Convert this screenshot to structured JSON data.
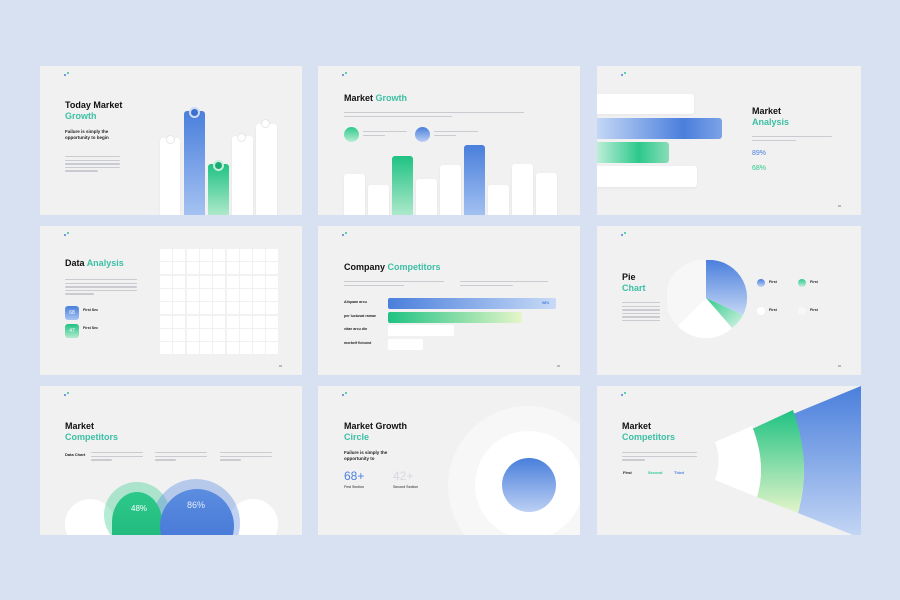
{
  "colors": {
    "background": "#d7e1f1",
    "slide": "#f1f1f2",
    "blue": "#4a7fdc",
    "green": "#2cc98a",
    "teal_text": "#3cbfa4"
  },
  "slides": [
    {
      "title": "Today Market",
      "title_accent": "Growth",
      "subtitle": "Failure is simply the opportunity to begin"
    },
    {
      "title": "Market",
      "title_accent": "Growth"
    },
    {
      "title": "Market",
      "title_accent": "Analysis",
      "stats": [
        {
          "value": "89%",
          "color": "#4a7fdc"
        },
        {
          "value": "68%",
          "color": "#2cc98a"
        }
      ]
    },
    {
      "title": "Data",
      "title_accent": "Analysis",
      "legend": [
        {
          "value": "68",
          "label": "First Sec"
        },
        {
          "value": "47",
          "label": "First Sec"
        }
      ],
      "grid": {
        "cols": 9,
        "rows": 8,
        "blue_cells": [
          [
            7,
            0
          ],
          [
            1,
            1
          ],
          [
            7,
            2
          ],
          [
            0,
            4
          ],
          [
            5,
            4
          ],
          [
            8,
            4
          ],
          [
            6,
            5
          ]
        ],
        "green_cells": [
          [
            2,
            1
          ],
          [
            4,
            3
          ],
          [
            3,
            4
          ],
          [
            0,
            5
          ],
          [
            5,
            7
          ]
        ]
      }
    },
    {
      "title": "Company",
      "title_accent": "Competitors",
      "rows": [
        {
          "label": "Aliquam arcu",
          "level": 1.0,
          "style": "blue",
          "value": "98%"
        },
        {
          "label": "per luctusat ramae",
          "level": 0.8,
          "style": "green"
        },
        {
          "label": "vitae arcu din",
          "level": 0.39,
          "style": "white"
        },
        {
          "label": "morbeif fictunst",
          "level": 0.21,
          "style": "white"
        }
      ]
    },
    {
      "title": "Pie",
      "title_accent": "Chart",
      "legend": [
        "First",
        "First",
        "First",
        "First"
      ]
    },
    {
      "title": "Market",
      "title_accent": "Competitors",
      "label": "Data Chart",
      "circles": [
        {
          "value": "48%"
        },
        {
          "value": "86%"
        }
      ]
    },
    {
      "title": "Market Growth",
      "title_accent": "Circle",
      "subtitle": "Failure is simply the opportunity to",
      "stats": [
        {
          "value": "68+",
          "label": "First Section"
        },
        {
          "value": "42+",
          "label": "Second Section"
        }
      ]
    },
    {
      "title": "Market",
      "title_accent": "Competitors",
      "tiers": [
        "First",
        "Second",
        "Third"
      ]
    }
  ]
}
